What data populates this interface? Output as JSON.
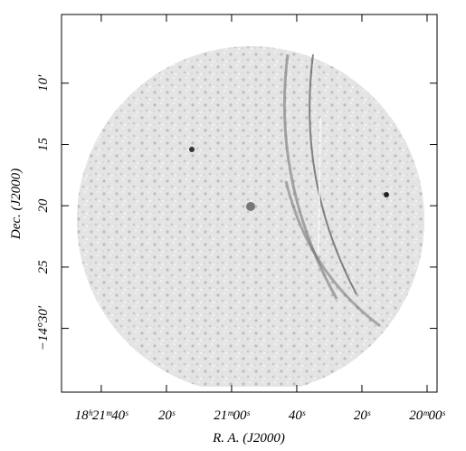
{
  "chart_data": {
    "type": "image",
    "xlabel": "R. A. (J2000)",
    "ylabel": "Dec. (J2000)",
    "xlim": [
      112.2,
      -3.06
    ],
    "xticks": [
      {
        "value": 100,
        "label": "18ʰ21ᵐ40ˢ"
      },
      {
        "value": 80,
        "label": "20ˢ"
      },
      {
        "value": 60,
        "label": "21ᵐ00ˢ"
      },
      {
        "value": 40,
        "label": "40ˢ"
      },
      {
        "value": 20,
        "label": "20ˢ"
      },
      {
        "value": 0,
        "label": "20ᵐ00ˢ"
      }
    ],
    "ylim": [
      -14.5867,
      -14.0733
    ],
    "yticks": [
      {
        "value": -14.1667,
        "label": "10′"
      },
      {
        "value": -14.25,
        "label": "15"
      },
      {
        "value": -14.3333,
        "label": "20"
      },
      {
        "value": -14.4167,
        "label": "25"
      },
      {
        "value": -14.5,
        "label": "−14°30′"
      }
    ]
  }
}
